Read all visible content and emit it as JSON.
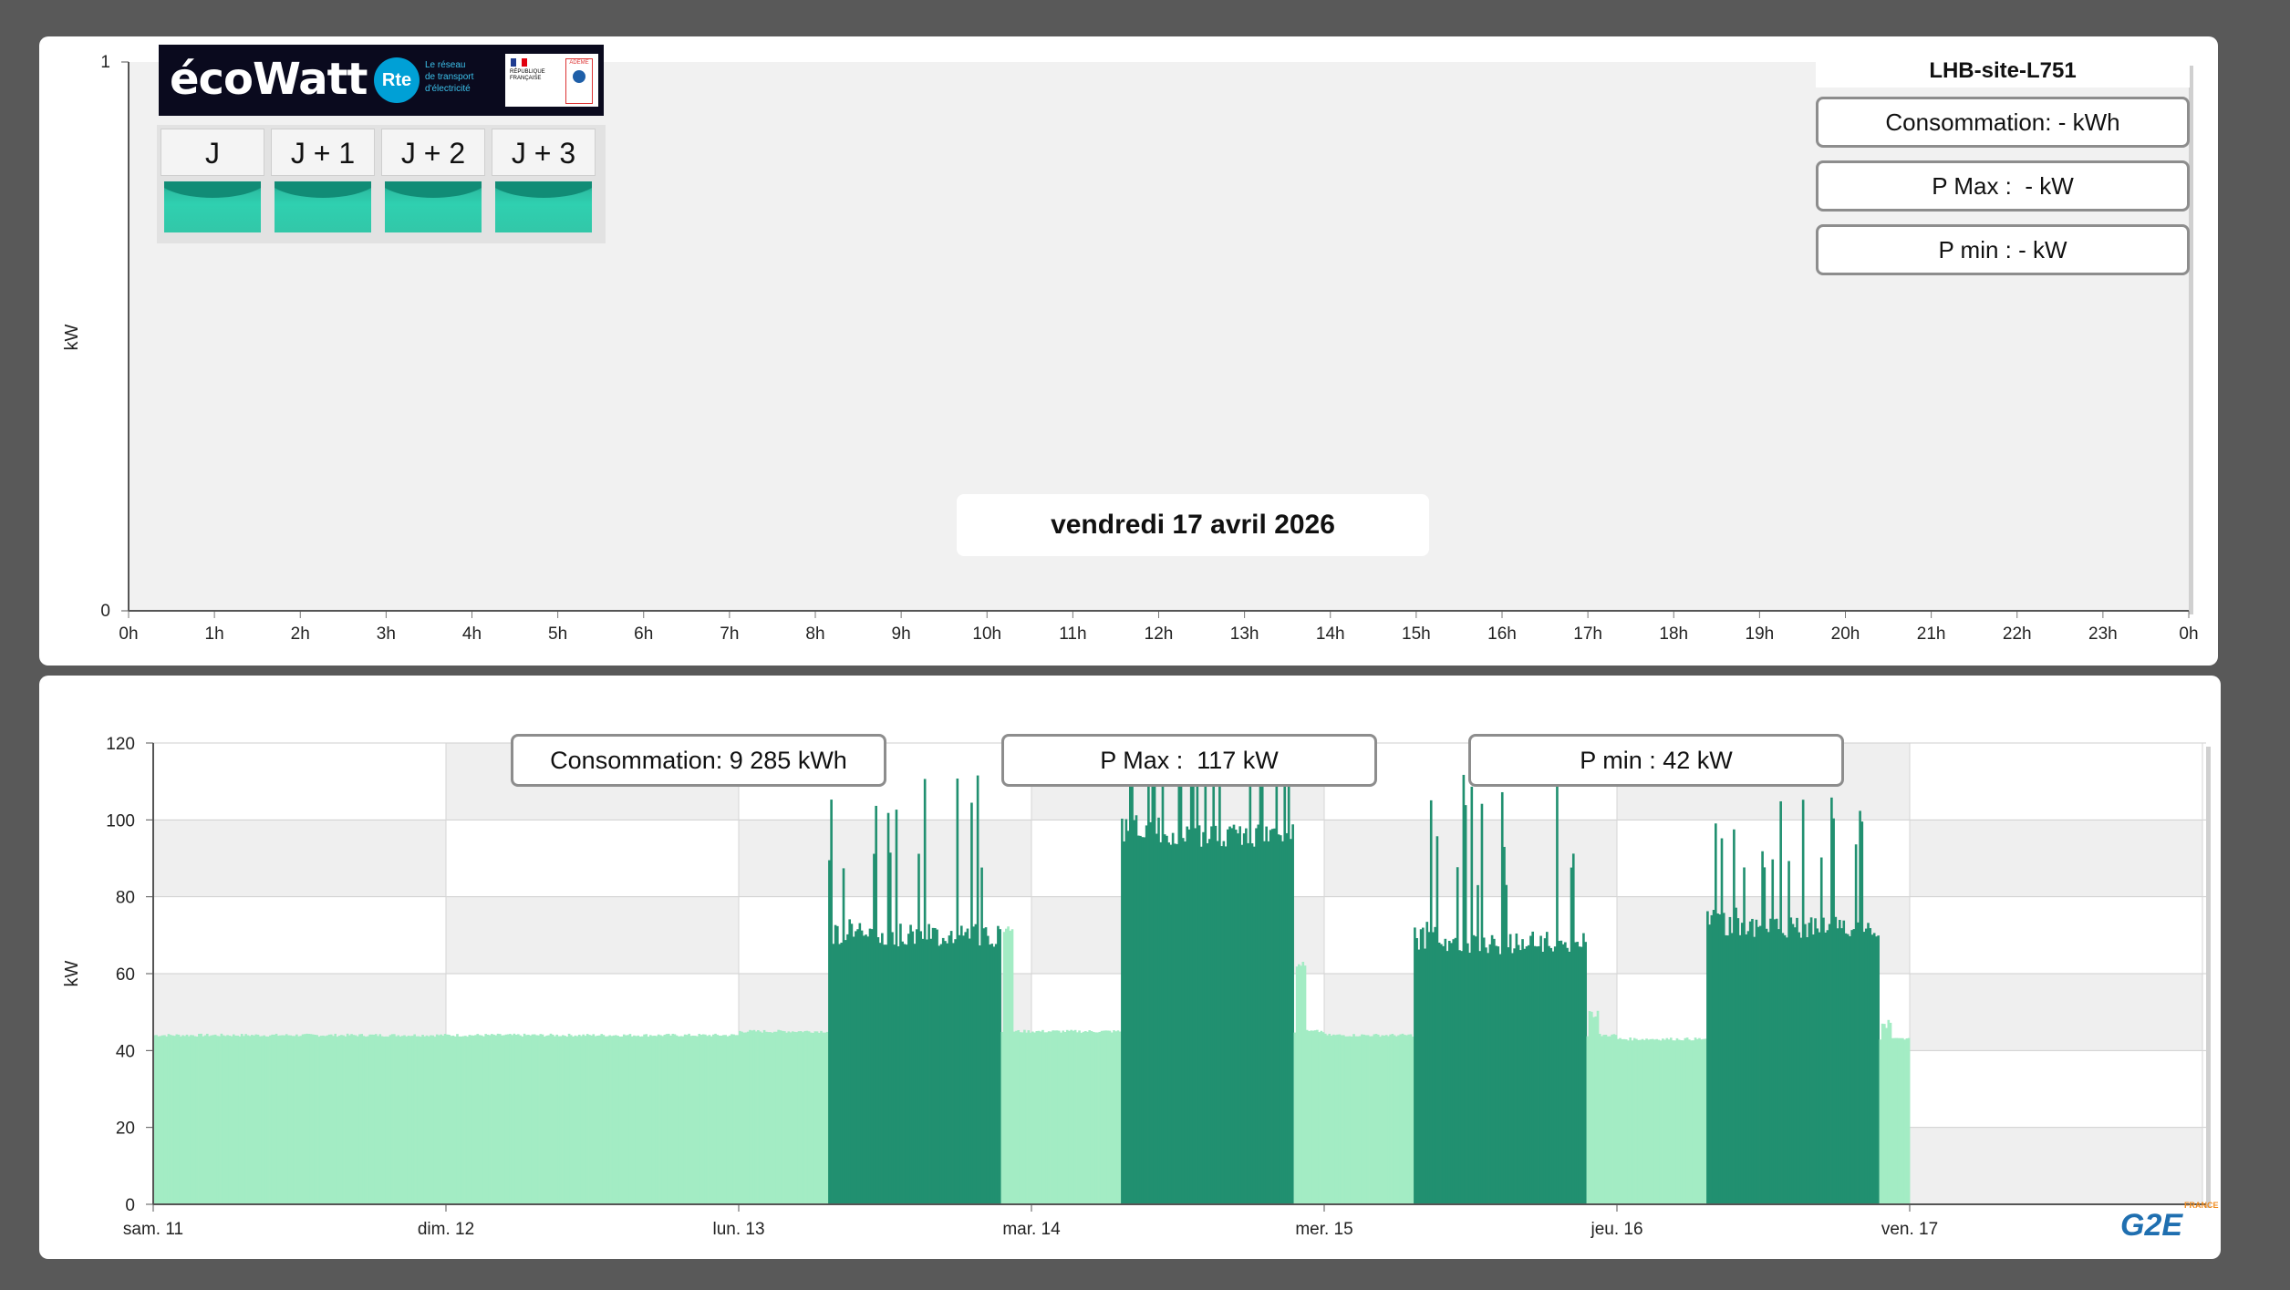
{
  "top_chart": {
    "site_name": "LHB-site-L751",
    "consumption": "Consommation: - kWh",
    "pmax": "P Max :  - kW",
    "pmin": "P min : - kW",
    "date": "vendredi 17 avril 2026",
    "y_label": "kW",
    "y_ticks": [
      "0",
      "1"
    ],
    "x_ticks": [
      "0h",
      "1h",
      "2h",
      "3h",
      "4h",
      "5h",
      "6h",
      "7h",
      "8h",
      "9h",
      "10h",
      "11h",
      "12h",
      "13h",
      "14h",
      "15h",
      "16h",
      "17h",
      "18h",
      "19h",
      "20h",
      "21h",
      "22h",
      "23h",
      "0h"
    ]
  },
  "ecowatt": {
    "brand": "écoWatt",
    "rte_logo": "Rte",
    "rte_text": "Le réseau\nde transport\nd'électricité",
    "gov_text": "RÉPUBLIQUE\nFRANÇAISE",
    "ademe": "ADEME",
    "days": [
      {
        "label": "J",
        "signal": "green"
      },
      {
        "label": "J + 1",
        "signal": "green"
      },
      {
        "label": "J + 2",
        "signal": "green"
      },
      {
        "label": "J + 3",
        "signal": "green"
      }
    ]
  },
  "bottom_chart": {
    "consumption": "Consommation: 9 285 kWh",
    "pmax": "P Max :  117 kW",
    "pmin": "P min : 42 kW",
    "y_label": "kW",
    "y_ticks": [
      "0",
      "20",
      "40",
      "60",
      "80",
      "100",
      "120"
    ],
    "x_ticks": [
      "sam. 11",
      "dim. 12",
      "lun. 13",
      "mar. 14",
      "mer. 15",
      "jeu. 16",
      "ven. 17"
    ]
  },
  "chart_data": [
    {
      "type": "area",
      "title": "vendredi 17 avril 2026",
      "xlabel": "",
      "ylabel": "kW",
      "ylim": [
        0,
        1
      ],
      "categories": [
        "0h",
        "1h",
        "2h",
        "3h",
        "4h",
        "5h",
        "6h",
        "7h",
        "8h",
        "9h",
        "10h",
        "11h",
        "12h",
        "13h",
        "14h",
        "15h",
        "16h",
        "17h",
        "18h",
        "19h",
        "20h",
        "21h",
        "22h",
        "23h",
        "0h"
      ],
      "series": [],
      "grid": "vertical"
    },
    {
      "type": "bar",
      "xlabel": "",
      "ylabel": "kW",
      "ylim": [
        0,
        120
      ],
      "x_range": [
        "sam. 11",
        "ven. 17"
      ],
      "grid": true,
      "colors": {
        "base": "#a3ecc4",
        "working": "#219070"
      },
      "days": [
        {
          "label": "sam. 11",
          "base_kw": 44,
          "peak_kw": 44
        },
        {
          "label": "dim. 12",
          "base_kw": 44,
          "peak_kw": 45
        },
        {
          "label": "lun. 13",
          "base_kw": 45,
          "work_level_kw": 70,
          "peak_kw": 112,
          "evening_kw": 72
        },
        {
          "label": "mar. 14",
          "base_kw": 45,
          "work_level_kw": 96,
          "peak_kw": 110,
          "evening_kw": 63
        },
        {
          "label": "mer. 15",
          "base_kw": 44,
          "work_level_kw": 68,
          "peak_kw": 113,
          "evening_kw": 50
        },
        {
          "label": "jeu. 16",
          "base_kw": 43,
          "work_level_kw": 72,
          "peak_kw": 109,
          "evening_kw": 47
        }
      ],
      "annotations": [
        "Consommation: 9 285 kWh",
        "P Max :  117 kW",
        "P min : 42 kW"
      ]
    }
  ],
  "branding": {
    "g2e": "G2E",
    "g2e_country": "FRANCE"
  }
}
